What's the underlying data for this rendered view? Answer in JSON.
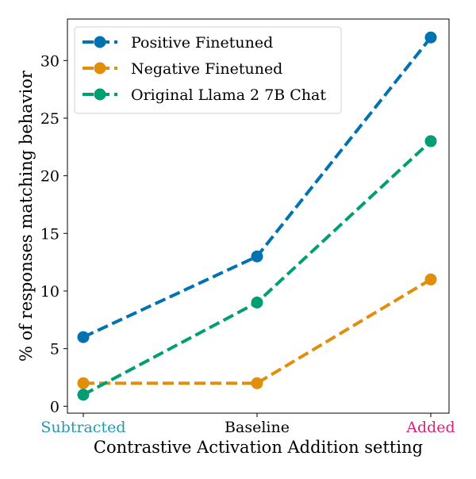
{
  "chart_data": {
    "type": "line",
    "title": "",
    "xlabel": "Contrastive Activation Addition setting",
    "ylabel": "% of responses matching behavior",
    "categories": [
      "Subtracted",
      "Baseline",
      "Added"
    ],
    "category_colors": [
      "#1f9bb0",
      "#000000",
      "#d6247a"
    ],
    "ylim": [
      -0.6,
      33.6
    ],
    "yticks": [
      0,
      5,
      10,
      15,
      20,
      25,
      30
    ],
    "grid": false,
    "legend_position": "top-left",
    "line_style": "dashed",
    "markers": "circle",
    "series": [
      {
        "name": "Positive Finetuned",
        "values": [
          6,
          13,
          32
        ],
        "color": "#0072b2"
      },
      {
        "name": "Negative Finetuned",
        "values": [
          2,
          2,
          11
        ],
        "color": "#e08e0b"
      },
      {
        "name": "Original Llama 2 7B Chat",
        "values": [
          1,
          9,
          23
        ],
        "color": "#029e73"
      }
    ]
  }
}
